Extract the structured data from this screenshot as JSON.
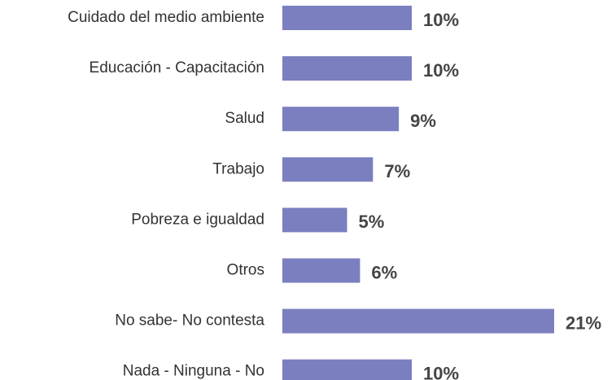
{
  "chart_data": {
    "type": "bar",
    "orientation": "horizontal",
    "categories": [
      "Cuidado del medio ambiente",
      "Educación - Capacitación",
      "Salud",
      "Trabajo",
      "Pobreza e igualdad",
      "Otros",
      "No sabe- No contesta",
      "Nada - Ninguna - No"
    ],
    "values": [
      10,
      10,
      9,
      7,
      5,
      6,
      21,
      10
    ],
    "value_labels": [
      "10%",
      "10%",
      "9%",
      "7%",
      "5%",
      "6%",
      "21%",
      "10%"
    ],
    "color": "#7b7fbf"
  }
}
